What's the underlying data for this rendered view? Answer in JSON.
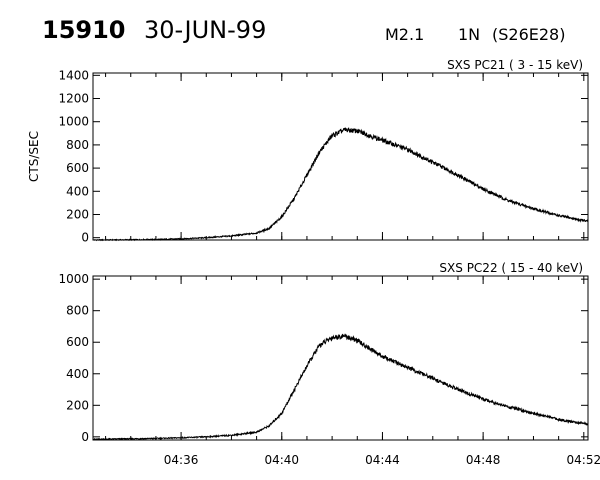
{
  "header": {
    "id": "15910",
    "date": "30-JUN-99",
    "flare_class": "M2.1",
    "optical_class": "1N",
    "location": "(S26E28)"
  },
  "chart_data": [
    {
      "type": "line",
      "title": "SXS PC21  (  3 - 15 keV)",
      "ylabel": "CTS/SEC",
      "xlabel": "",
      "grid": false,
      "ylim": [
        -20,
        1420
      ],
      "yticks": [
        0,
        200,
        400,
        600,
        800,
        1000,
        1200,
        1400
      ],
      "xlim": [
        "04:32:30",
        "04:52:10"
      ],
      "xticks": [
        "04:36",
        "04:40",
        "04:44",
        "04:48",
        "04:52"
      ],
      "show_xtick_labels": false,
      "series": [
        {
          "x": [
            "04:32:30",
            "04:34:00",
            "04:35:00",
            "04:36:00",
            "04:37:00",
            "04:38:00",
            "04:39:00",
            "04:39:30",
            "04:40:00",
            "04:40:30",
            "04:41:00",
            "04:41:30",
            "04:42:00",
            "04:42:30",
            "04:43:00",
            "04:43:30",
            "04:44:00",
            "04:45:00",
            "04:46:00",
            "04:47:00",
            "04:48:00",
            "04:49:00",
            "04:50:00",
            "04:51:00",
            "04:52:10"
          ],
          "values": [
            -20,
            -18,
            -15,
            -10,
            0,
            15,
            40,
            80,
            180,
            340,
            540,
            740,
            880,
            930,
            920,
            880,
            840,
            760,
            650,
            540,
            420,
            320,
            250,
            190,
            140
          ]
        }
      ]
    },
    {
      "type": "line",
      "title": "SXS PC22  ( 15 - 40 keV)",
      "ylabel": "",
      "xlabel": "",
      "grid": false,
      "ylim": [
        -20,
        1020
      ],
      "yticks": [
        0,
        200,
        400,
        600,
        800,
        1000
      ],
      "xlim": [
        "04:32:30",
        "04:52:10"
      ],
      "xticks": [
        "04:36",
        "04:40",
        "04:44",
        "04:48",
        "04:52"
      ],
      "show_xtick_labels": true,
      "series": [
        {
          "x": [
            "04:32:30",
            "04:34:00",
            "04:35:00",
            "04:36:00",
            "04:37:00",
            "04:38:00",
            "04:39:00",
            "04:39:30",
            "04:40:00",
            "04:40:30",
            "04:41:00",
            "04:41:30",
            "04:42:00",
            "04:42:30",
            "04:43:00",
            "04:43:30",
            "04:44:00",
            "04:45:00",
            "04:46:00",
            "04:47:00",
            "04:48:00",
            "04:49:00",
            "04:50:00",
            "04:51:00",
            "04:52:10"
          ],
          "values": [
            -15,
            -12,
            -10,
            -6,
            0,
            10,
            30,
            70,
            150,
            300,
            450,
            580,
            630,
            640,
            610,
            560,
            510,
            440,
            370,
            300,
            240,
            190,
            150,
            110,
            80
          ]
        }
      ]
    }
  ]
}
